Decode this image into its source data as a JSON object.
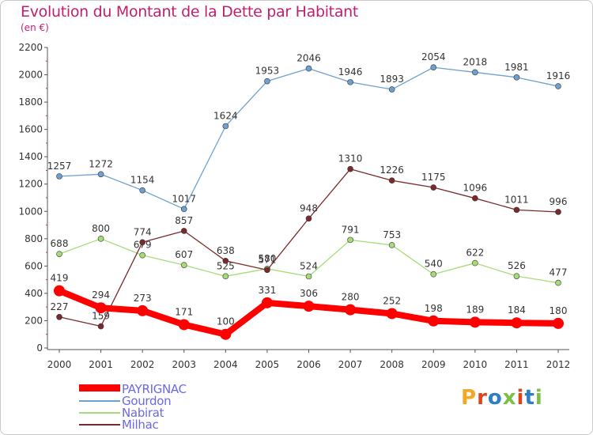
{
  "header": {
    "title": "Evolution du Montant de la Dette par Habitant",
    "subtitle": "(en €)"
  },
  "brand": {
    "logo_text": "Proxiti",
    "logo_colors": [
      "#f5a623",
      "#e0421c",
      "#2e7fc1",
      "#7ac143",
      "#e0421c",
      "#2e7fc1",
      "#7ac143"
    ]
  },
  "chart_data": {
    "type": "line",
    "title": "Evolution du Montant de la Dette par Habitant",
    "ylabel": "(en €)",
    "xlabel": "",
    "x": [
      2000,
      2001,
      2002,
      2003,
      2004,
      2005,
      2006,
      2007,
      2008,
      2009,
      2010,
      2011,
      2012
    ],
    "ylim": [
      0,
      2200
    ],
    "yticks": [
      0,
      200,
      400,
      600,
      800,
      1000,
      1200,
      1400,
      1600,
      1800,
      2000,
      2200
    ],
    "grid": false,
    "legend_position": "bottom-left",
    "series": [
      {
        "name": "PAYRIGNAC",
        "color": "#ff0000",
        "values": [
          419,
          294,
          273,
          171,
          100,
          331,
          306,
          280,
          252,
          198,
          189,
          184,
          180
        ]
      },
      {
        "name": "Gourdon",
        "color": "#6ea0d0",
        "values": [
          1257,
          1272,
          1154,
          1017,
          1624,
          1953,
          2046,
          1946,
          1893,
          2054,
          2018,
          1981,
          1916
        ]
      },
      {
        "name": "Nabirat",
        "color": "#a6dc78",
        "values": [
          688,
          800,
          679,
          607,
          525,
          580,
          524,
          791,
          753,
          540,
          622,
          526,
          477
        ]
      },
      {
        "name": "Milhac",
        "color": "#7a2a2a",
        "values": [
          227,
          159,
          774,
          857,
          638,
          571,
          948,
          1310,
          1226,
          1175,
          1096,
          1011,
          996
        ]
      }
    ]
  }
}
